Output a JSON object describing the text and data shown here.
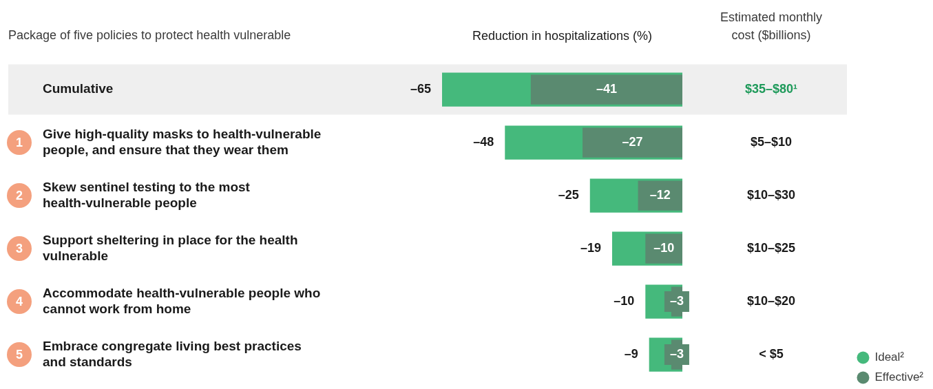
{
  "chart_data": {
    "type": "bar",
    "orientation": "horizontal",
    "xlabel": "Reduction in hospitalizations (%)",
    "categories": [
      "Cumulative",
      "Give high-quality masks to health-vulnerable people, and ensure that they wear them",
      "Skew sentinel testing to the most health-vulnerable people",
      "Support sheltering in place for the health vulnerable",
      "Accommodate health-vulnerable people who cannot work from home",
      "Embrace congregate living best practices and standards"
    ],
    "series": [
      {
        "name": "Ideal²",
        "color": "#45b97c",
        "values": [
          -65,
          -48,
          -25,
          -19,
          -10,
          -9
        ],
        "value_labels": [
          "–65",
          "–48",
          "–25",
          "–19",
          "–10",
          "–9"
        ]
      },
      {
        "name": "Effective²",
        "color": "#5a8a70",
        "values": [
          -41,
          -27,
          -12,
          -10,
          -3,
          -3
        ],
        "value_labels": [
          "–41",
          "–27",
          "–12",
          "–10",
          "–3",
          "–3"
        ]
      }
    ],
    "tick_labels": "y",
    "legend": "bottom right",
    "bands": [
      {
        "axis": "y",
        "from": "Cumulative",
        "to": "Cumulative",
        "color": "#efefef"
      }
    ],
    "annotations": [
      "Package of five policies to protect health vulnerable",
      "Estimated monthly cost ($billions)",
      "$35–$80¹",
      "$5–$10",
      "$10–$30",
      "$10–$25",
      "$10–$20",
      "< $5",
      "1",
      "2",
      "3",
      "4",
      "5"
    ]
  }
}
